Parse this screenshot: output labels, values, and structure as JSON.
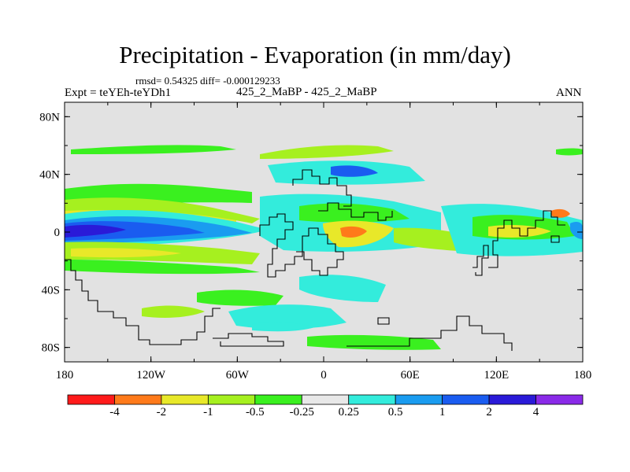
{
  "header": {
    "title": "Precipitation - Evaporation (in mm/day)",
    "stats": "rmsd= 0.54325  diff= -0.000129233",
    "expt": "Expt = teYEh-teYDh1",
    "case": "425_2_MaBP - 425_2_MaBP",
    "season": "ANN"
  },
  "chart_data": {
    "type": "heatmap",
    "title": "Precipitation - Evaporation (in mm/day)",
    "subtitle": "rmsd= 0.54325 diff= -0.000129233",
    "xlabel": "",
    "ylabel": "",
    "x_ticks": [
      "180",
      "120W",
      "60W",
      "0",
      "60E",
      "120E",
      "180"
    ],
    "x_tick_values": [
      -180,
      -120,
      -60,
      0,
      60,
      120,
      180
    ],
    "y_ticks": [
      "80N",
      "40N",
      "0",
      "40S",
      "80S"
    ],
    "y_tick_values": [
      80,
      40,
      0,
      -40,
      -80
    ],
    "xlim": [
      -180,
      180
    ],
    "ylim": [
      -90,
      90
    ],
    "colorbar": {
      "levels": [
        "-4",
        "-2",
        "-1",
        "-0.5",
        "-0.25",
        "0.25",
        "0.5",
        "1",
        "2",
        "4"
      ],
      "colors": [
        "#ff1a1a",
        "#ff7a1a",
        "#e8e829",
        "#a6f01f",
        "#3af01f",
        "#e8e8e8",
        "#33ecdc",
        "#1a9cf0",
        "#1a5cf0",
        "#2a1ad8",
        "#8a2ae8"
      ]
    },
    "background_color": "#e2e2e2",
    "coast_color": "#000000"
  }
}
